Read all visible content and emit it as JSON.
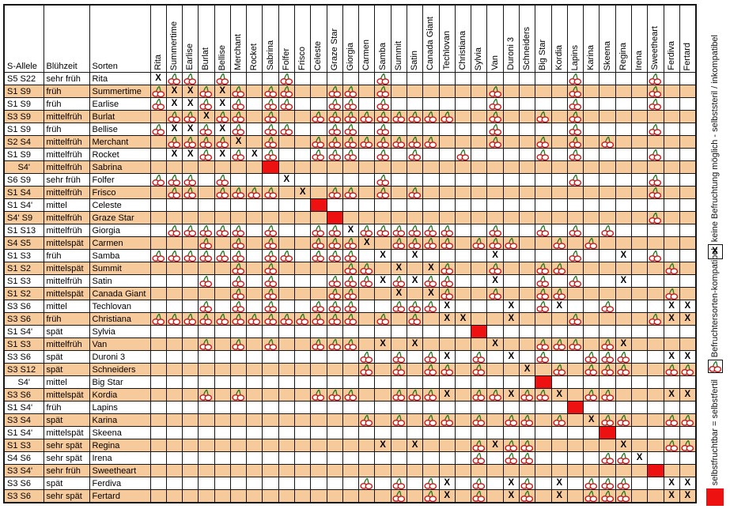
{
  "chart_data": {
    "type": "table",
    "corner_headers": [
      "S-Allele",
      "Blühzeit",
      "Sorten"
    ],
    "columns": [
      "Rita",
      "Summertime",
      "Earlise",
      "Burlat",
      "Bellise",
      "Merchant",
      "Rocket",
      "Sabrina",
      "Folfer",
      "Frisco",
      "Celeste",
      "Graze Star",
      "Giorgia",
      "Carmen",
      "Samba",
      "Summit",
      "Satin",
      "Canada Giant",
      "Techlovan",
      "Christiana",
      "Sylvia",
      "Van",
      "Duroni 3",
      "Schneiders",
      "Big Star",
      "Kordia",
      "Lapins",
      "Karina",
      "Skeena",
      "Regina",
      "Irena",
      "Sweetheart",
      "Ferdiva",
      "Fertard"
    ],
    "cell_codes": {
      "C": "cherry-icon (Befruchtersorten-kompatibel)",
      "X": "keine Befruchtung möglich",
      "S": "selbstfruchtbar (rotes Feld)",
      ".": "leer"
    },
    "rows": [
      {
        "s_allele": "S5 S22",
        "bloom": "sehr früh",
        "name": "Rita",
        "cells": "XCC.C...C.....C...........C....C.."
      },
      {
        "s_allele": "S1 S9",
        "bloom": "früh",
        "name": "Summertime",
        "cells": "CXXCXC.CC..CC.C......C....C....C.."
      },
      {
        "s_allele": "S1 S9",
        "bloom": "früh",
        "name": "Earlise",
        "cells": "CXXCXC.CC..CC.C......C....C....C.."
      },
      {
        "s_allele": "S3 S9",
        "bloom": "mittelfrüh",
        "name": "Burlat",
        "cells": ".CCXCC.C..CCCCCCCCC..C..C.C......."
      },
      {
        "s_allele": "S1 S9",
        "bloom": "früh",
        "name": "Bellise",
        "cells": "CXXCXC.CC..CC.C......C....C....C.."
      },
      {
        "s_allele": "S2 S4",
        "bloom": "mittelfrüh",
        "name": "Merchant",
        "cells": ".CCCCX.C..CCCCCCCC...C..C.C.C....."
      },
      {
        "s_allele": "S1 S9",
        "bloom": "mittelfrüh",
        "name": "Rocket",
        "cells": ".XXCXCXC..CCC.C.C..C....C.C....C.."
      },
      {
        "s_allele": "S4'",
        "bloom": "mittelfrüh",
        "name": "Sabrina",
        "cells": ".......S.........................."
      },
      {
        "s_allele": "S6 S9",
        "bloom": "sehr früh",
        "name": "Folfer",
        "cells": "CCC.C...X.....C...........C....C.."
      },
      {
        "s_allele": "S1 S4",
        "bloom": "mittelfrüh",
        "name": "Frisco",
        "cells": ".CC.CCCC.X.CC.C.C..............C.."
      },
      {
        "s_allele": "S1 S4'",
        "bloom": "mittel",
        "name": "Celeste",
        "cells": "..........S......................."
      },
      {
        "s_allele": "S4' S9",
        "bloom": "mittelfrüh",
        "name": "Graze Star",
        "cells": "...........S...................C.."
      },
      {
        "s_allele": "S1 S13",
        "bloom": "mittelfrüh",
        "name": "Giorgia",
        "cells": ".CCCCC.C..CCXCCCCCC..C..C.C.C....."
      },
      {
        "s_allele": "S4 S5",
        "bloom": "mittelspät",
        "name": "Carmen",
        "cells": "...C.C.C..CCCX.CCCC.CCC..C.C......"
      },
      {
        "s_allele": "S1 S3",
        "bloom": "früh",
        "name": "Samba",
        "cells": "CCCCCC.CC.CCC.X.X....X....C..X.C.."
      },
      {
        "s_allele": "S1 S2",
        "bloom": "mittelspät",
        "name": "Summit",
        "cells": ".....C.C....CC.X.XC..C..CC......C."
      },
      {
        "s_allele": "S1 S3",
        "bloom": "mittelfrüh",
        "name": "Satin",
        "cells": "...C.C.C...CCCXCXCC..X..C.C..X...."
      },
      {
        "s_allele": "S1 S2",
        "bloom": "mittelspät",
        "name": "Canada Giant",
        "cells": ".....C.C...CC..X.XC..C..CC......C."
      },
      {
        "s_allele": "S3 S6",
        "bloom": "mittel",
        "name": "Techlovan",
        "cells": "...C.C.C..CCC..CCCX...X.CX..C...XX"
      },
      {
        "s_allele": "S3 S6",
        "bloom": "früh",
        "name": "Christiana",
        "cells": "CCCCCCCCCCCCC.C.C.XX..X...C....CXX"
      },
      {
        "s_allele": "S1 S4'",
        "bloom": "spät",
        "name": "Sylvia",
        "cells": "....................S............."
      },
      {
        "s_allele": "S1 S3",
        "bloom": "mittelfrüh",
        "name": "Van",
        "cells": "...C.C.C..CCC.X.X....X..CCC.CX...."
      },
      {
        "s_allele": "S3 S6",
        "bloom": "spät",
        "name": "Duroni 3",
        "cells": ".............C.C.CX.C.X.C..CCC..XX"
      },
      {
        "s_allele": "S3 S12",
        "bloom": "spät",
        "name": "Schneiders",
        "cells": ".............C.C.CC.C..X.C.CCC..CC"
      },
      {
        "s_allele": "S4'",
        "bloom": "mittel",
        "name": "Big Star",
        "cells": "........................S........."
      },
      {
        "s_allele": "S3 S6",
        "bloom": "mittelspät",
        "name": "Kordia",
        "cells": "...C.C....CCC..CCCX.CCXCCX.CC...XX"
      },
      {
        "s_allele": "S1 S4'",
        "bloom": "früh",
        "name": "Lapins",
        "cells": "..........................S......."
      },
      {
        "s_allele": "S3 S4",
        "bloom": "spät",
        "name": "Karina",
        "cells": ".............C.C.CC.C.CC.C.XCC..CC"
      },
      {
        "s_allele": "S1 S4'",
        "bloom": "mittelspät",
        "name": "Skeena",
        "cells": "............................S....."
      },
      {
        "s_allele": "S1 S3",
        "bloom": "sehr spät",
        "name": "Regina",
        "cells": "..............X.X...CXCC.....X..CC"
      },
      {
        "s_allele": "S4 S6",
        "bloom": "sehr spät",
        "name": "Irena",
        "cells": "....................C.CC....CCX..."
      },
      {
        "s_allele": "S3 S4'",
        "bloom": "sehr früh",
        "name": "Sweetheart",
        "cells": "...............................S.."
      },
      {
        "s_allele": "S3 S6",
        "bloom": "spät",
        "name": "Ferdiva",
        "cells": ".............C.C.CX.C.XC.X.CCC..XX"
      },
      {
        "s_allele": "S3 S6",
        "bloom": "sehr spät",
        "name": "Fertard",
        "cells": "...............C.CX.C.XC.X.CCC..XX"
      }
    ]
  },
  "legend": {
    "items": [
      {
        "icon": "x-icon",
        "text": "keine Befruchtung möglich - selbststeril / inkompatibel"
      },
      {
        "icon": "cherry-icon",
        "text": "Befruchtersorten-kompatibel"
      },
      {
        "icon": "red-square-icon",
        "text": "selbstfruchtbar = selbstfertil"
      }
    ],
    "x_glyph": "X"
  },
  "colors": {
    "row_highlight": "#f7ca9b",
    "self_fertile_red": "#ee1111",
    "cherry_outline_red": "#d51515",
    "stem_green": "#1e7a1e",
    "grid": "#161616"
  }
}
